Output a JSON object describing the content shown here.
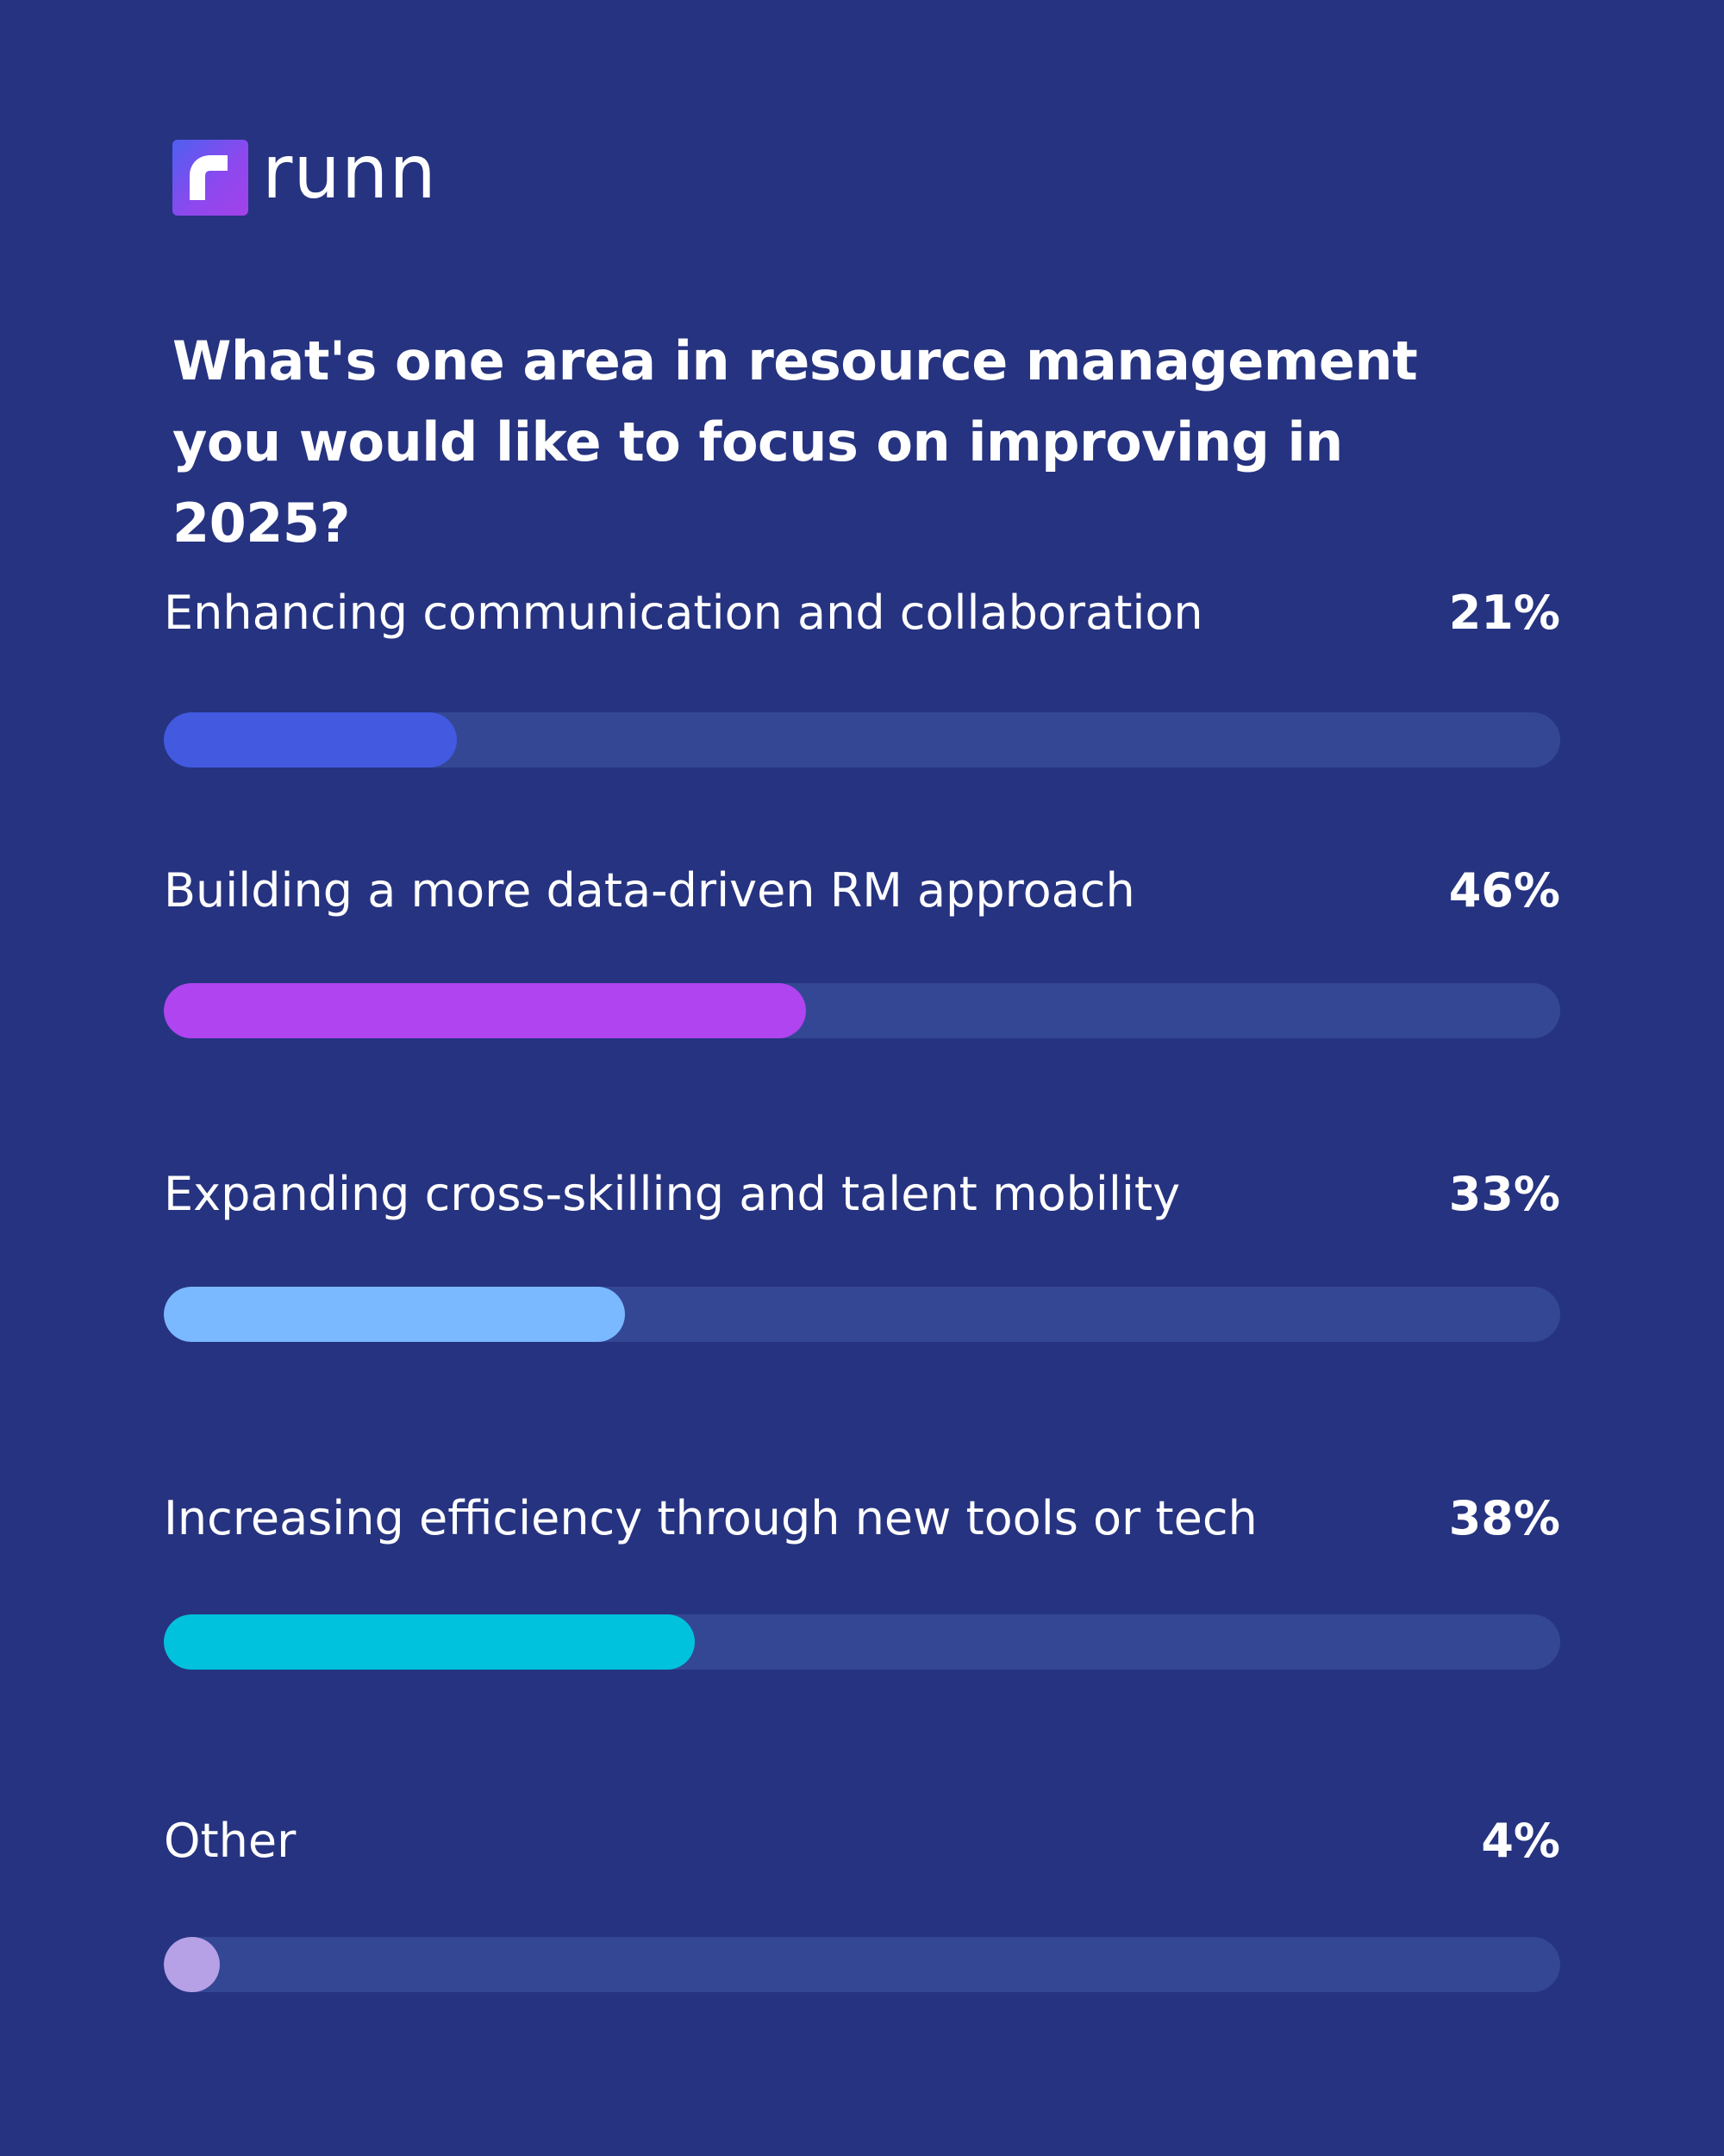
{
  "brand": {
    "name": "runn",
    "logo_icon": "runn-logo-icon"
  },
  "chart_data": {
    "type": "bar",
    "orientation": "horizontal",
    "title": "What's one area in resource management you would like to focus on improving in 2025?",
    "categories": [
      "Enhancing communication and collaboration",
      "Building a more data-driven RM approach",
      "Expanding cross-skilling and talent mobility",
      "Increasing efficiency through new tools or tech",
      "Other"
    ],
    "values": [
      21,
      46,
      33,
      38,
      4
    ],
    "value_labels": [
      "21%",
      "46%",
      "33%",
      "38%",
      "4%"
    ],
    "colors": [
      "#4259E0",
      "#B044F0",
      "#7AB8FF",
      "#00C2DC",
      "#B6A0E6"
    ],
    "unit": "%",
    "xlim": [
      0,
      100
    ],
    "grid": false,
    "legend": "none"
  }
}
